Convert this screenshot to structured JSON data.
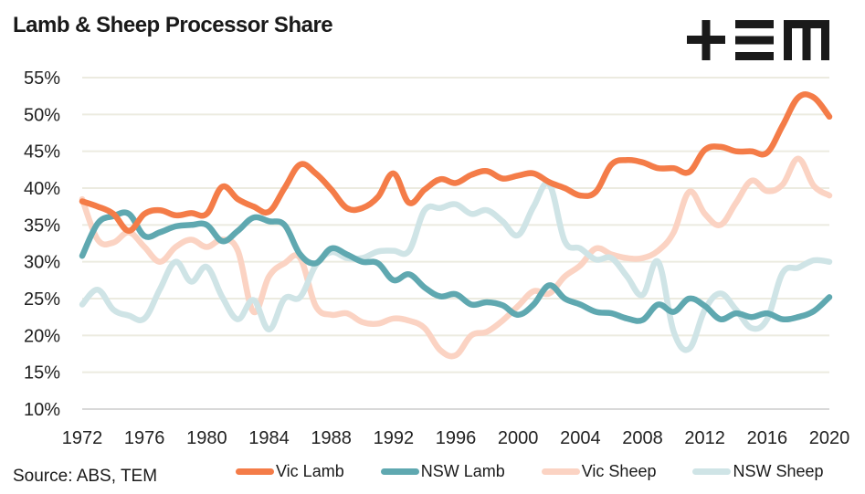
{
  "header": {
    "title": "Lamb & Sheep Processor Share",
    "logo": "tem-logo"
  },
  "footer": {
    "source": "Source: ABS, TEM"
  },
  "chart_data": {
    "type": "line",
    "title": "Lamb & Sheep Processor Share",
    "xlabel": "",
    "ylabel": "",
    "ylim": [
      10,
      55
    ],
    "xlim": [
      1972,
      2020
    ],
    "grid": true,
    "legend_position": "bottom",
    "y_ticks": [
      "10%",
      "15%",
      "20%",
      "25%",
      "30%",
      "35%",
      "40%",
      "45%",
      "50%",
      "55%"
    ],
    "y_tick_values": [
      10,
      15,
      20,
      25,
      30,
      35,
      40,
      45,
      50,
      55
    ],
    "x_ticks": [
      "1972",
      "1976",
      "1980",
      "1984",
      "1988",
      "1992",
      "1996",
      "2000",
      "2004",
      "2008",
      "2012",
      "2016",
      "2020"
    ],
    "x_tick_values": [
      1972,
      1976,
      1980,
      1984,
      1988,
      1992,
      1996,
      2000,
      2004,
      2008,
      2012,
      2016,
      2020
    ],
    "x": [
      1972,
      1973,
      1974,
      1975,
      1976,
      1977,
      1978,
      1979,
      1980,
      1981,
      1982,
      1983,
      1984,
      1985,
      1986,
      1987,
      1988,
      1989,
      1990,
      1991,
      1992,
      1993,
      1994,
      1995,
      1996,
      1997,
      1998,
      1999,
      2000,
      2001,
      2002,
      2003,
      2004,
      2005,
      2006,
      2007,
      2008,
      2009,
      2010,
      2011,
      2012,
      2013,
      2014,
      2015,
      2016,
      2017,
      2018,
      2019,
      2020
    ],
    "series": [
      {
        "name": "Vic Sheep",
        "color": "#fbd3c3",
        "values": [
          38.5,
          33,
          32.6,
          34,
          32,
          30,
          32,
          33,
          32,
          33,
          31.5,
          23.2,
          28,
          29.8,
          30.5,
          24,
          22.8,
          23,
          21.8,
          21.6,
          22.3,
          22,
          21,
          18,
          17.3,
          20,
          20.5,
          22,
          24,
          26,
          25.7,
          28,
          29.5,
          31.8,
          31,
          30.5,
          30.5,
          31.5,
          34,
          39.5,
          36.5,
          35,
          38,
          41,
          39.6,
          40.5,
          44,
          40.3,
          39
        ]
      },
      {
        "name": "NSW Sheep",
        "color": "#cfe4e6",
        "values": [
          24.2,
          26.2,
          23.5,
          22.7,
          22.3,
          26.3,
          30,
          27.3,
          29.3,
          25.2,
          22.2,
          24.8,
          20.8,
          25,
          25.2,
          29.5,
          31.3,
          30.5,
          30.5,
          31.4,
          31.5,
          31.5,
          37,
          37.3,
          37.8,
          36.5,
          37,
          35.5,
          33.6,
          37.5,
          40.5,
          32.8,
          31.8,
          30.3,
          30.5,
          28,
          25.5,
          30,
          20.5,
          18.2,
          23.5,
          25.7,
          23.5,
          21,
          22.2,
          28.5,
          29.2,
          30.2,
          30
        ]
      },
      {
        "name": "NSW Lamb",
        "color": "#5fa8b0",
        "values": [
          30.8,
          35.2,
          36.2,
          36.5,
          33.5,
          34,
          34.8,
          35,
          35,
          32.8,
          34.2,
          36,
          35.5,
          35,
          31,
          29.8,
          31.8,
          31,
          30,
          29.8,
          27.5,
          28.3,
          26.5,
          25.3,
          25.6,
          24.2,
          24.5,
          24.1,
          22.8,
          24.2,
          26.8,
          25,
          24.2,
          23.2,
          23,
          22.3,
          22.1,
          24.2,
          23.2,
          25,
          24,
          22.2,
          23,
          22.5,
          23,
          22.2,
          22.5,
          23.3,
          25.2
        ]
      },
      {
        "name": "Vic Lamb",
        "color": "#f47c48",
        "values": [
          38.2,
          37.5,
          36.5,
          34.2,
          36.5,
          37,
          36.3,
          36.6,
          36.5,
          40.2,
          38.5,
          37.5,
          36.8,
          40,
          43.2,
          42,
          39.8,
          37.3,
          37.3,
          38.8,
          42,
          38,
          39.8,
          41.2,
          40.7,
          41.8,
          42.3,
          41.3,
          41.7,
          42,
          40.8,
          40,
          39,
          39.5,
          43.2,
          43.8,
          43.5,
          42.7,
          42.7,
          42.2,
          45.2,
          45.6,
          45,
          45,
          44.8,
          48.5,
          52.3,
          52.3,
          49.7
        ]
      }
    ],
    "legend": [
      {
        "name": "Vic Lamb",
        "color": "#f47c48"
      },
      {
        "name": "NSW Lamb",
        "color": "#5fa8b0"
      },
      {
        "name": "Vic Sheep",
        "color": "#fbd3c3"
      },
      {
        "name": "NSW Sheep",
        "color": "#cfe4e6"
      }
    ]
  }
}
